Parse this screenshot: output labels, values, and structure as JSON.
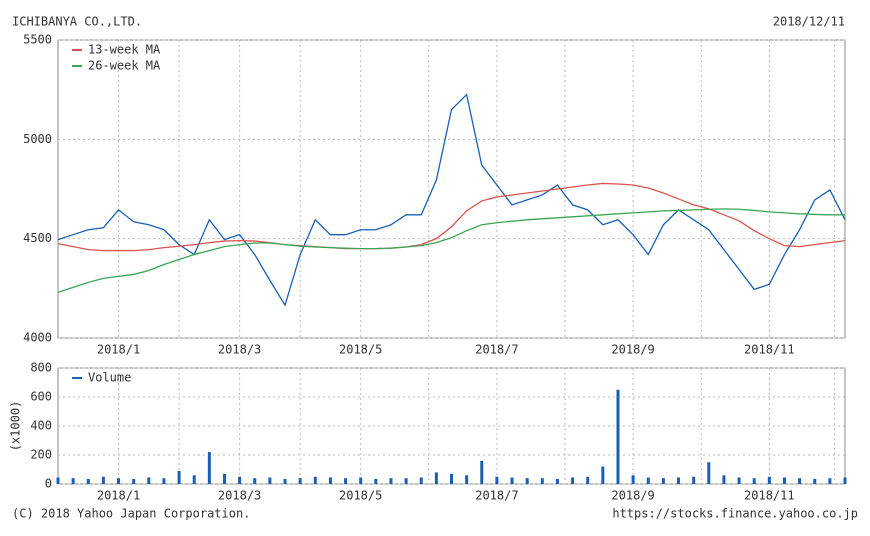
{
  "title": "ICHIBANYA CO.,LTD.",
  "date": "2018/12/11",
  "footer_left": "(C) 2018 Yahoo Japan Corporation.",
  "footer_right": "https://stocks.finance.yahoo.co.jp",
  "chart_data": [
    {
      "type": "line",
      "categories": [
        null,
        null,
        null,
        null,
        "2018/1",
        null,
        null,
        null,
        null,
        null,
        null,
        null,
        "2018/3",
        null,
        null,
        null,
        null,
        null,
        null,
        null,
        "2018/5",
        null,
        null,
        null,
        null,
        null,
        null,
        null,
        null,
        "2018/7",
        null,
        null,
        null,
        null,
        null,
        null,
        null,
        null,
        "2018/9",
        null,
        null,
        null,
        null,
        null,
        null,
        null,
        null,
        "2018/11",
        null,
        null,
        null,
        null,
        null
      ],
      "series": [
        {
          "name": null,
          "color": "#1a5fb4",
          "values": [
            4495,
            4520,
            4545,
            4555,
            4645,
            4585,
            4570,
            4545,
            4470,
            4420,
            4595,
            4495,
            4520,
            4420,
            4290,
            4165,
            4420,
            4595,
            4520,
            4520,
            4545,
            4545,
            4570,
            4620,
            4620,
            4795,
            5150,
            5225,
            4870,
            4770,
            4670,
            4695,
            4720,
            4770,
            4670,
            4645,
            4570,
            4595,
            4520,
            4420,
            4570,
            4645,
            4595,
            4545,
            4445,
            4345,
            4245,
            4270,
            4420,
            4545,
            4695,
            4745,
            4595
          ]
        },
        {
          "name": "13-week MA",
          "color": "#d9534f",
          "values": [
            4475,
            4460,
            4445,
            4440,
            4440,
            4440,
            4445,
            4455,
            4462,
            4470,
            4480,
            4488,
            4490,
            4488,
            4480,
            4470,
            4465,
            4460,
            4455,
            4450,
            4450,
            4450,
            4452,
            4458,
            4470,
            4500,
            4560,
            4640,
            4690,
            4710,
            4720,
            4730,
            4740,
            4750,
            4760,
            4770,
            4778,
            4775,
            4770,
            4755,
            4730,
            4700,
            4670,
            4650,
            4620,
            4590,
            4540,
            4500,
            4465,
            4460,
            4470,
            4480,
            4490
          ]
        },
        {
          "name": "26-week MA",
          "color": "#3aa655",
          "values": [
            4230,
            4255,
            4280,
            4300,
            4310,
            4320,
            4340,
            4370,
            4395,
            4420,
            4440,
            4460,
            4470,
            4478,
            4478,
            4470,
            4462,
            4458,
            4455,
            4452,
            4450,
            4450,
            4452,
            4458,
            4465,
            4480,
            4505,
            4540,
            4570,
            4580,
            4588,
            4595,
            4600,
            4605,
            4610,
            4615,
            4620,
            4625,
            4630,
            4635,
            4640,
            4642,
            4645,
            4648,
            4650,
            4648,
            4642,
            4635,
            4630,
            4625,
            4622,
            4620,
            4620
          ]
        }
      ],
      "ylim": [
        4000,
        5500
      ],
      "yticks": [
        4000,
        4500,
        5000,
        5500
      ],
      "grid": true
    },
    {
      "type": "bar",
      "categories": [
        null,
        null,
        null,
        null,
        "2018/1",
        null,
        null,
        null,
        null,
        null,
        null,
        null,
        "2018/3",
        null,
        null,
        null,
        null,
        null,
        null,
        null,
        "2018/5",
        null,
        null,
        null,
        null,
        null,
        null,
        null,
        null,
        "2018/7",
        null,
        null,
        null,
        null,
        null,
        null,
        null,
        null,
        "2018/9",
        null,
        null,
        null,
        null,
        null,
        null,
        null,
        null,
        "2018/11",
        null,
        null,
        null,
        null,
        null
      ],
      "series": [
        {
          "name": "Volume",
          "color": "#1a5fb4",
          "values": [
            45,
            40,
            35,
            50,
            40,
            35,
            45,
            40,
            90,
            60,
            220,
            70,
            50,
            40,
            45,
            35,
            40,
            50,
            45,
            40,
            45,
            35,
            40,
            40,
            45,
            80,
            70,
            60,
            160,
            50,
            45,
            40,
            40,
            35,
            45,
            50,
            120,
            650,
            60,
            45,
            40,
            45,
            50,
            150,
            60,
            45,
            40,
            50,
            45,
            40,
            35,
            40,
            45
          ]
        }
      ],
      "ylabel": "(x1000)",
      "ylim": [
        0,
        800
      ],
      "yticks": [
        0,
        200,
        400,
        600,
        800
      ],
      "grid": true
    }
  ]
}
